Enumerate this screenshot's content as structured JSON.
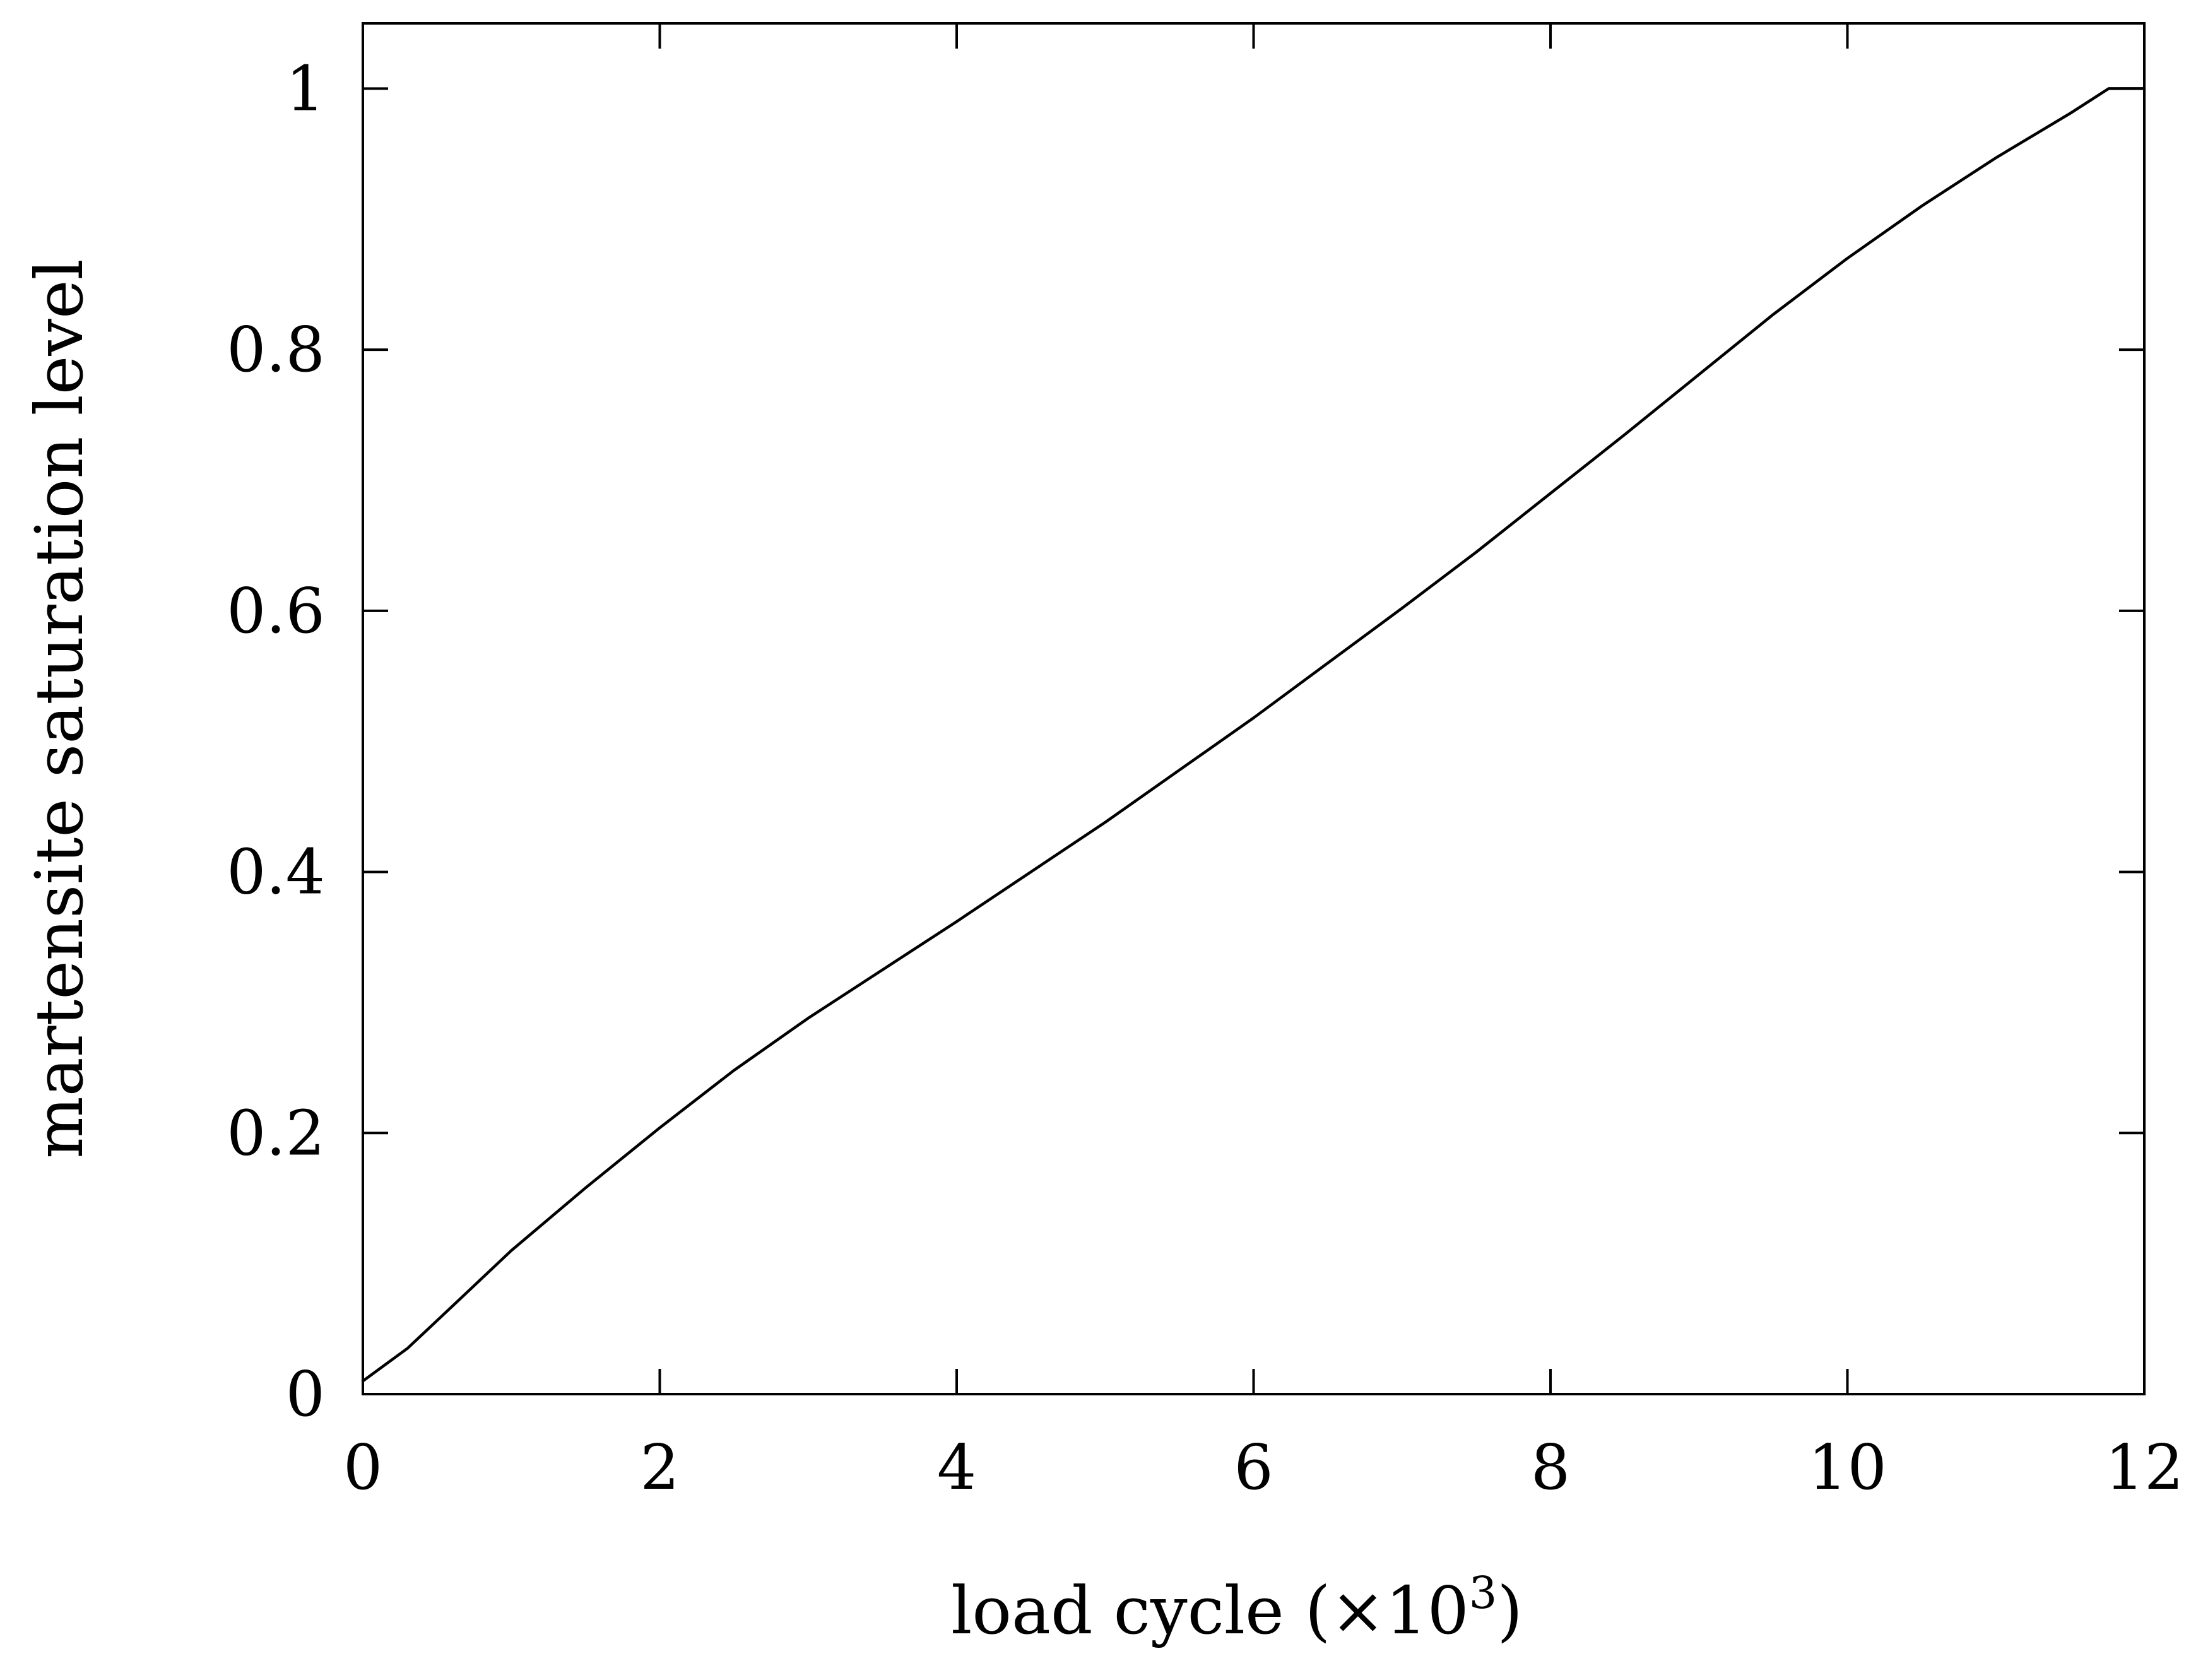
{
  "chart_data": {
    "type": "line",
    "xlabel": "load cycle (×10",
    "xlabel_exponent": "3",
    "xlabel_close": ")",
    "ylabel": "martensite saturation level",
    "xlim": [
      0,
      12
    ],
    "ylim": [
      0,
      1.05
    ],
    "xticks": [
      0,
      2,
      4,
      6,
      8,
      10,
      12
    ],
    "xtick_labels": [
      "0",
      "2",
      "4",
      "6",
      "8",
      "10",
      "12"
    ],
    "yticks": [
      0,
      0.2,
      0.4,
      0.6,
      0.8,
      1
    ],
    "ytick_labels": [
      "0",
      "0.2",
      "0.4",
      "0.6",
      "0.8",
      "1"
    ],
    "grid": false,
    "series": [
      {
        "x": [
          0,
          0.3,
          0.6,
          1.0,
          1.5,
          2.0,
          2.5,
          3.0,
          3.5,
          4.0,
          4.5,
          5.0,
          5.5,
          6.0,
          6.5,
          7.0,
          7.5,
          8.0,
          8.5,
          9.0,
          9.5,
          10.0,
          10.5,
          11.0,
          11.5,
          11.76,
          12.0
        ],
        "y": [
          0.01,
          0.035,
          0.067,
          0.11,
          0.158,
          0.204,
          0.248,
          0.288,
          0.325,
          0.362,
          0.4,
          0.438,
          0.478,
          0.518,
          0.56,
          0.602,
          0.645,
          0.69,
          0.735,
          0.781,
          0.827,
          0.87,
          0.91,
          0.947,
          0.981,
          1.0,
          1.0
        ]
      }
    ]
  }
}
